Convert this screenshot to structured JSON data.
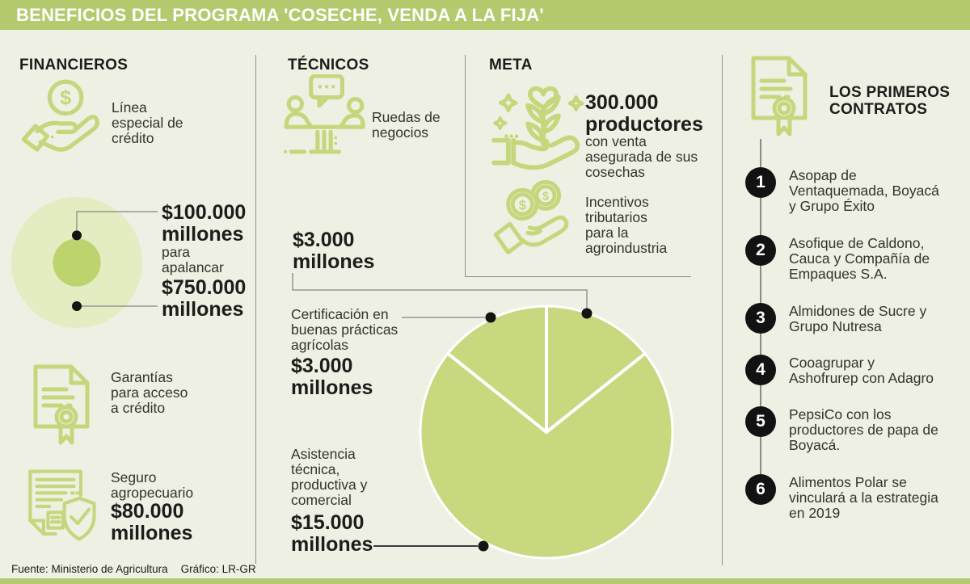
{
  "header": {
    "title": "BENEFICIOS DEL PROGRAMA 'COSECHE, VENDA A LA FIJA'"
  },
  "footer": {
    "source": "Fuente: Ministerio de Agricultura",
    "credit": "Gráfico: LR-GR"
  },
  "colors": {
    "header_bar": "#b5c96e",
    "background": "#edf0e2",
    "icon_green": "#c5d77c",
    "pie_green": "#c7d87f",
    "outer_circle": "#e4ecc1",
    "inner_circle": "#bcd36e",
    "callout_gray": "#969696",
    "dot_black": "#141414"
  },
  "financieros": {
    "heading": "FINANCIEROS",
    "credit_line": {
      "icon": "hand-coin-icon",
      "label": "Línea\nespecial de\ncrédito"
    },
    "leverage": {
      "amount_small": "$100.000\nmillones",
      "connector_text": "para\napalancar",
      "amount_big": "$750.000\nmillones"
    },
    "guarantees": {
      "icon": "certificate-icon",
      "label": "Garantías\npara acceso\na crédito"
    },
    "insurance": {
      "icon": "insurance-doc-shield-icon",
      "label": "Seguro\nagropecuario",
      "amount": "$80.000\nmillones"
    }
  },
  "tecnicos": {
    "heading": "TÉCNICOS",
    "business_rounds": {
      "icon": "meeting-icon",
      "label": "Ruedas de\nnegocios",
      "amount": "$3.000\nmillones"
    },
    "certification": {
      "label": "Certificación en\nbuenas prácticas\nagrícolas",
      "amount": "$3.000\nmillones"
    },
    "assistance": {
      "label": "Asistencia\ntécnica,\nproductiva y\ncomercial",
      "amount": "$15.000\nmillones"
    }
  },
  "meta": {
    "heading": "META",
    "producers": {
      "icon": "plant-hand-icon",
      "amount": "300.000\nproductores",
      "label": "con venta\nasegurada de sus\ncosechas"
    },
    "incentives": {
      "icon": "coins-hand-icon",
      "label": "Incentivos\ntributarios\npara la\nagroindustria"
    }
  },
  "contracts": {
    "heading": "LOS PRIMEROS\nCONTRATOS",
    "icon": "certificate-icon",
    "items": [
      {
        "number": "1",
        "label": "Asopap de\nVentaquemada, Boyacá\ny Grupo Éxito"
      },
      {
        "number": "2",
        "label": "Asofique de Caldono,\nCauca y Compañía de\nEmpaques S.A."
      },
      {
        "number": "3",
        "label": "Almidones de Sucre y\nGrupo Nutresa"
      },
      {
        "number": "4",
        "label": "Cooagrupar y\nAshofrurep con Adagro"
      },
      {
        "number": "5",
        "label": "PepsiCo con los\nproductores de papa de\nBoyacá."
      },
      {
        "number": "6",
        "label": "Alimentos Polar se\nvinculará a la estrategia\nen 2019"
      }
    ]
  },
  "chart_data": [
    {
      "type": "pie",
      "section": "TÉCNICOS",
      "unit": "$ millones",
      "slices_clockwise_from_top": [
        {
          "label": "Ruedas de negocios",
          "value": 3000
        },
        {
          "label": "Asistencia técnica, productiva y comercial",
          "value": 15000
        },
        {
          "label": "Certificación en buenas prácticas agrícolas",
          "value": 3000
        }
      ],
      "colors": {
        "slice_fill": "#c7d87f",
        "separator": "#ffffff"
      },
      "legend_position": "left-callouts",
      "grid": false
    },
    {
      "type": "nested-circles",
      "section": "FINANCIEROS",
      "unit": "$ millones",
      "circles": [
        {
          "label": "$100.000 millones",
          "value": 100000,
          "role": "inner"
        },
        {
          "label": "$750.000 millones",
          "value": 750000,
          "role": "outer"
        }
      ]
    }
  ]
}
